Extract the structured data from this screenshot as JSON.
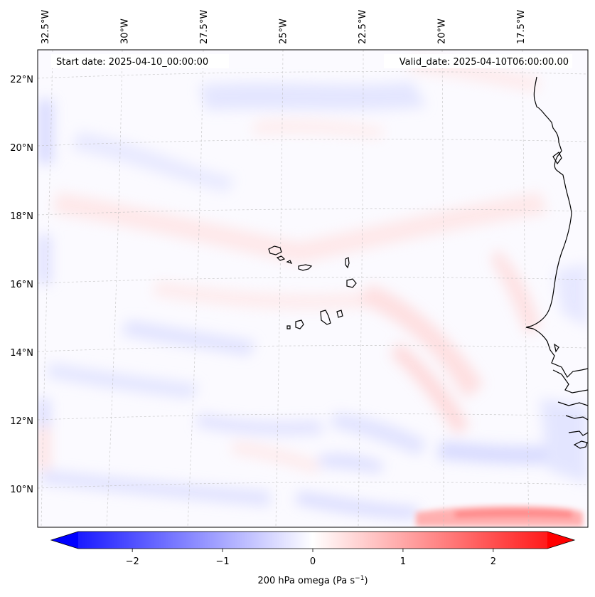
{
  "map": {
    "start_label": "Start date: 2025-04-10_00:00:00",
    "valid_label": "Valid_date: 2025-04-10T06:00:00.00",
    "lon_labels": [
      {
        "lon": -32.5,
        "text": "32.5°W"
      },
      {
        "lon": -30,
        "text": "30°W"
      },
      {
        "lon": -27.5,
        "text": "27.5°W"
      },
      {
        "lon": -25,
        "text": "25°W"
      },
      {
        "lon": -22.5,
        "text": "22.5°W"
      },
      {
        "lon": -20,
        "text": "20°W"
      },
      {
        "lon": -17.5,
        "text": "17.5°W"
      }
    ],
    "lat_labels": [
      {
        "lat": 22,
        "text": "22°N"
      },
      {
        "lat": 20,
        "text": "20°N"
      },
      {
        "lat": 18,
        "text": "18°N"
      },
      {
        "lat": 16,
        "text": "16°N"
      },
      {
        "lat": 14,
        "text": "14°N"
      },
      {
        "lat": 12,
        "text": "12°N"
      },
      {
        "lat": 10,
        "text": "10°N"
      }
    ],
    "gridlines": true,
    "coastline_color": "#000000",
    "field": "200 hPa omega"
  },
  "colorbar": {
    "label_main": "200 hPa omega (Pa s",
    "label_sup": "−1",
    "label_end": ")",
    "min": -2.6,
    "max": 2.6,
    "extend": "both",
    "colormap": "bwr",
    "low_color": "#0000ff",
    "mid_color": "#ffffff",
    "high_color": "#ff0000",
    "ticks": [
      {
        "value": -2,
        "text": "−2"
      },
      {
        "value": -1,
        "text": "−1"
      },
      {
        "value": 0,
        "text": "0"
      },
      {
        "value": 1,
        "text": "1"
      },
      {
        "value": 2,
        "text": "2"
      }
    ]
  }
}
